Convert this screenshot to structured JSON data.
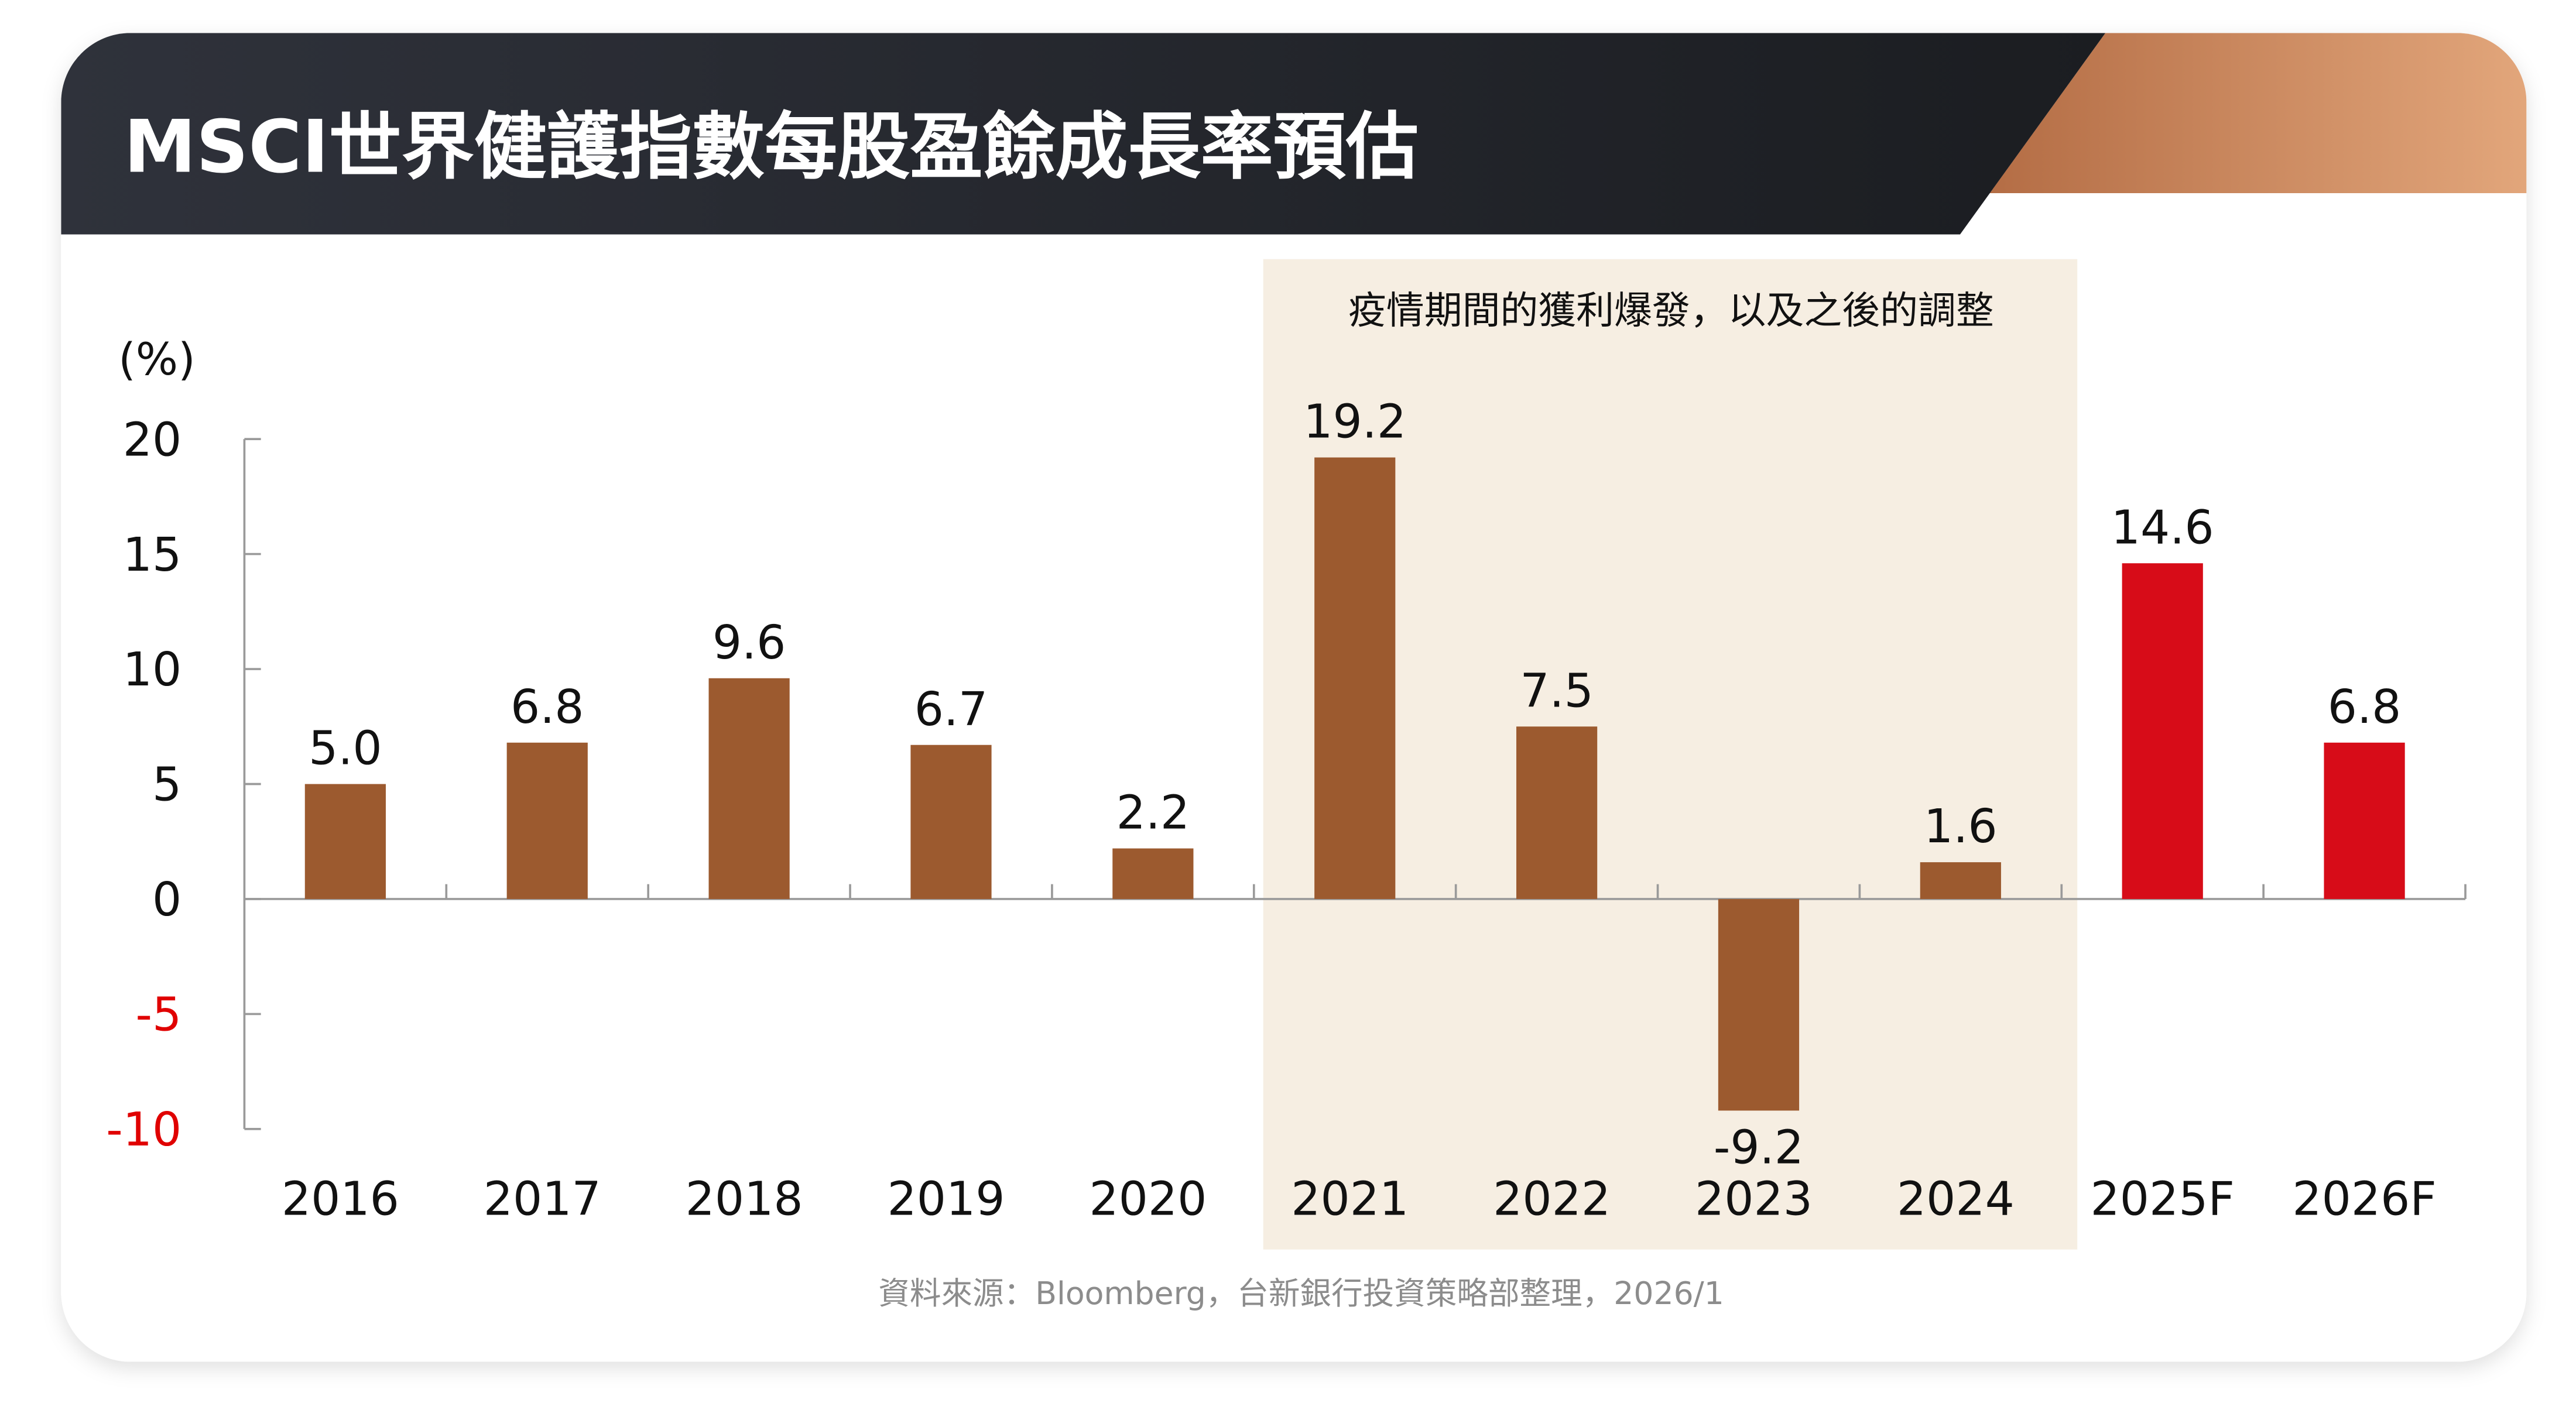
{
  "header": {
    "title": "MSCI世界健護指數每股盈餘成長率預估"
  },
  "annotation": "疫情期間的獲利爆發，以及之後的調整",
  "source": "資料來源：Bloomberg，台新銀行投資策略部整理，2026/1",
  "colors": {
    "actual": "#9c5a2f",
    "forecast": "#d70c18",
    "highlight": "#f6eee2",
    "header_dark": "#2a2d35",
    "header_accent": "#d59468",
    "negative_tick": "#e00000"
  },
  "chart_data": {
    "type": "bar",
    "title": "MSCI世界健護指數每股盈餘成長率預估",
    "ylabel": "(%)",
    "xlabel": "",
    "ylim": [
      -10,
      20
    ],
    "yticks": [
      20,
      15,
      10,
      5,
      0,
      -5,
      -10
    ],
    "ytick_labels": [
      "20",
      "15",
      "10",
      "5",
      "0",
      "-5",
      "-10"
    ],
    "categories": [
      "2016",
      "2017",
      "2018",
      "2019",
      "2020",
      "2021",
      "2022",
      "2023",
      "2024",
      "2025F",
      "2026F"
    ],
    "values": [
      5.0,
      6.8,
      9.6,
      6.7,
      2.2,
      19.2,
      7.5,
      -9.2,
      1.6,
      14.6,
      6.8
    ],
    "value_labels": [
      "5.0",
      "6.8",
      "9.6",
      "6.7",
      "2.2",
      "19.2",
      "7.5",
      "-9.2",
      "1.6",
      "14.6",
      "6.8"
    ],
    "forecast": [
      false,
      false,
      false,
      false,
      false,
      false,
      false,
      false,
      false,
      true,
      true
    ],
    "highlight_range": [
      "2021",
      "2024"
    ],
    "grid": false,
    "legend": "none"
  }
}
